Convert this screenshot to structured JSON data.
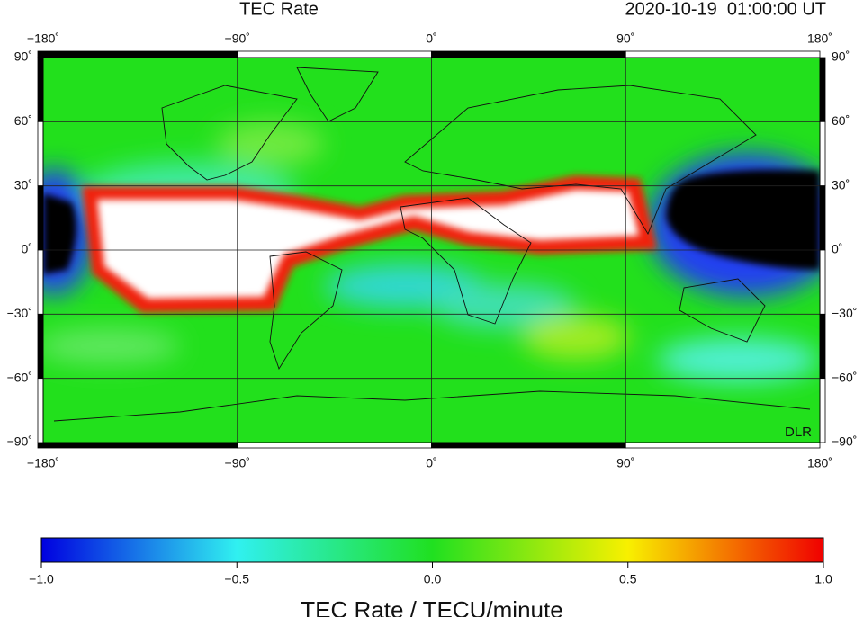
{
  "header": {
    "title": "TEC Rate",
    "timestamp": "2020-10-19  01:00:00 UT"
  },
  "map": {
    "longitude_labels": [
      "−180˚",
      "−90˚",
      "0˚",
      "90˚",
      "180˚"
    ],
    "latitude_labels": [
      "90˚",
      "60˚",
      "30˚",
      "0˚",
      "−30˚",
      "−60˚",
      "−90˚"
    ],
    "credit": "DLR"
  },
  "colorbar": {
    "tick_labels": [
      "−1.0",
      "−0.5",
      "0.0",
      "0.5",
      "1.0"
    ],
    "label": "TEC Rate / TECU/minute"
  }
}
